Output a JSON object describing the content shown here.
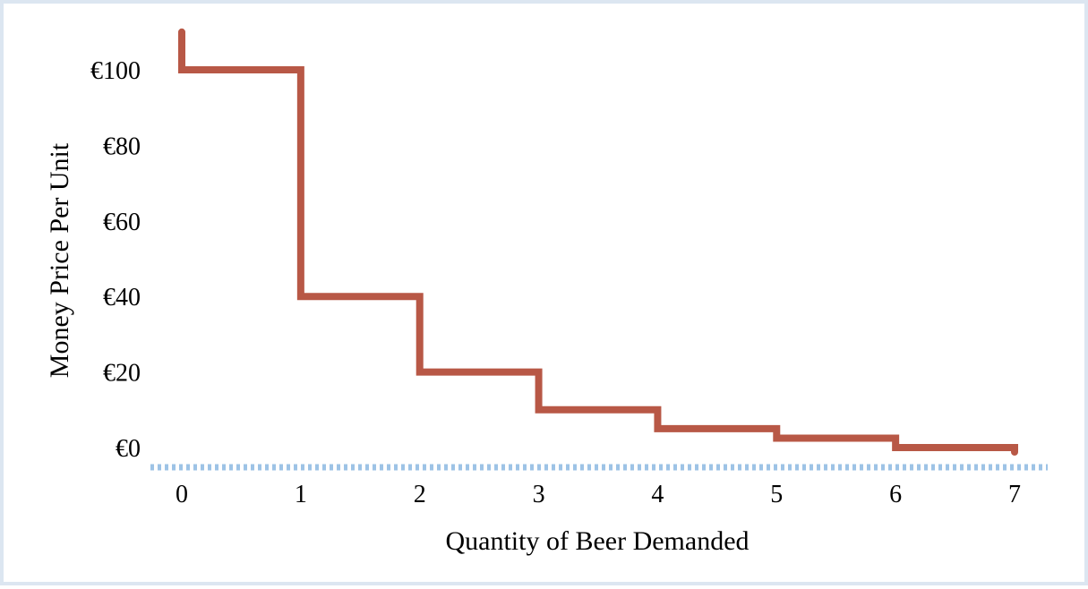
{
  "chart_data": {
    "type": "line",
    "step": true,
    "title": "",
    "xlabel": "Quantity of Beer Demanded",
    "ylabel": "Money Price Per Unit",
    "x_ticks": [
      "0",
      "1",
      "2",
      "3",
      "4",
      "5",
      "6",
      "7"
    ],
    "y_ticks": [
      "€0",
      "€20",
      "€40",
      "€60",
      "€80",
      "€100"
    ],
    "xlim": [
      0,
      7
    ],
    "ylim": [
      0,
      110
    ],
    "grid": false,
    "legend": "none",
    "series": [
      {
        "x": [
          0,
          1,
          2,
          3,
          4,
          5,
          6,
          7
        ],
        "y": [
          110,
          100,
          40,
          20,
          10,
          5,
          2.5,
          0
        ]
      }
    ],
    "colors": {
      "line": "#b85846",
      "axis": "#9dc3e6",
      "border": "#dce6f1",
      "text": "#000000"
    }
  }
}
